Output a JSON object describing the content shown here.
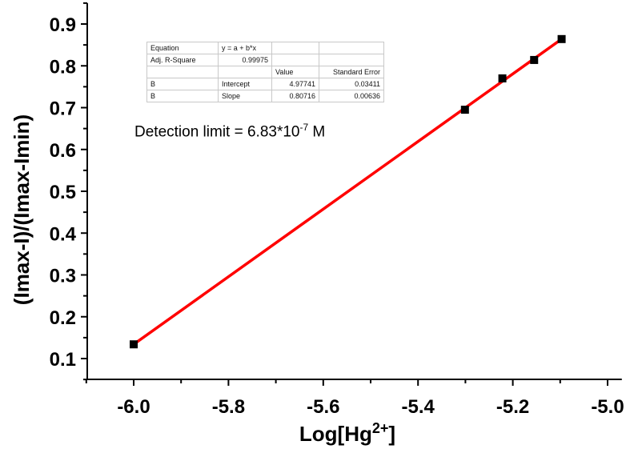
{
  "chart_data": {
    "type": "scatter",
    "title": "",
    "xlabel": "Log[Hg2+]",
    "xlabel_main": "Log[Hg",
    "xlabel_sup": "2+",
    "xlabel_end": "]",
    "ylabel": "(Imax-I)/(Imax-Imin)",
    "xlim": [
      -6.1,
      -4.97
    ],
    "ylim": [
      0.05,
      0.95
    ],
    "xticks": [
      "-6.0",
      "-5.8",
      "-5.6",
      "-5.4",
      "-5.2",
      "-5.0"
    ],
    "xtick_values": [
      -6.0,
      -5.8,
      -5.6,
      -5.4,
      -5.2,
      -5.0
    ],
    "yticks": [
      "0.1",
      "0.2",
      "0.3",
      "0.4",
      "0.5",
      "0.6",
      "0.7",
      "0.8",
      "0.9"
    ],
    "ytick_values": [
      0.1,
      0.2,
      0.3,
      0.4,
      0.5,
      0.6,
      0.7,
      0.8,
      0.9
    ],
    "grid": false,
    "series": [
      {
        "name": "data",
        "marker": "square",
        "color": "#000000",
        "x": [
          -6.0,
          -5.301,
          -5.222,
          -5.155,
          -5.097
        ],
        "y": [
          0.134,
          0.695,
          0.77,
          0.814,
          0.864
        ]
      },
      {
        "name": "linear fit",
        "type": "line",
        "color": "#ff0000",
        "x": [
          -6.0,
          -5.097
        ],
        "y": [
          0.134,
          0.864
        ]
      }
    ],
    "fit_table": {
      "rows": [
        [
          "Equation",
          "y = a + b*x",
          "",
          ""
        ],
        [
          "Adj. R-Square",
          "0.99975",
          "",
          ""
        ],
        [
          "",
          "",
          "Value",
          "Standard Error"
        ],
        [
          "B",
          "Intercept",
          "4.97741",
          "0.03411"
        ],
        [
          "B",
          "Slope",
          "0.80716",
          "0.00636"
        ]
      ]
    },
    "annotation": {
      "prefix": "Detection limit = 6.83*10",
      "exp": "-7",
      "suffix": " M"
    }
  }
}
